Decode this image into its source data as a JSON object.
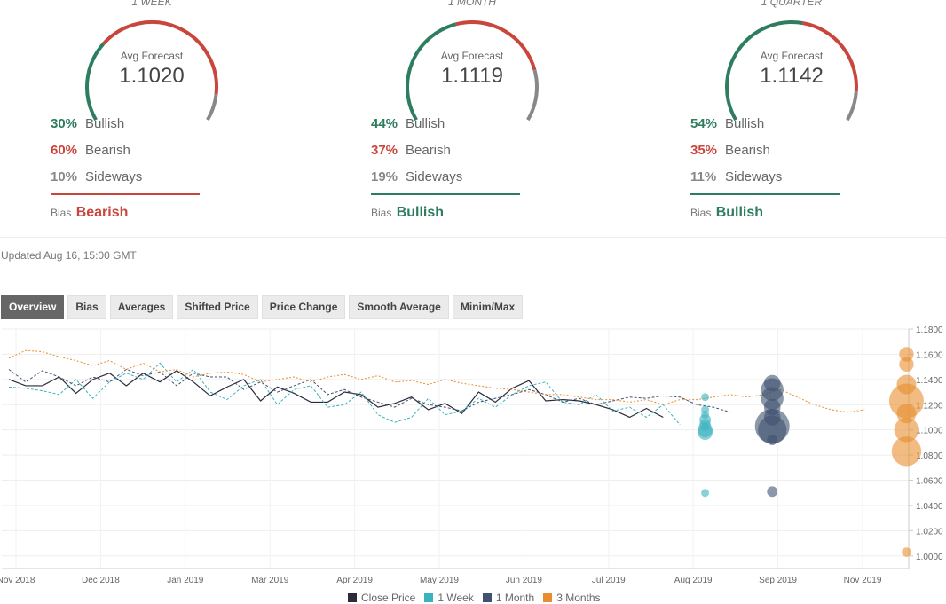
{
  "forecasts": [
    {
      "period": "1 WEEK",
      "avg_label": "Avg Forecast",
      "avg_value": "1.1020",
      "stats": [
        {
          "pct": "30%",
          "label": "Bullish",
          "color": "#2f7d5f"
        },
        {
          "pct": "60%",
          "label": "Bearish",
          "color": "#c9463d"
        },
        {
          "pct": "10%",
          "label": "Sideways",
          "color": "#888888"
        }
      ],
      "bias_label": "Bias",
      "bias": "Bearish",
      "bias_color": "#c9463d"
    },
    {
      "period": "1 MONTH",
      "avg_label": "Avg Forecast",
      "avg_value": "1.1119",
      "stats": [
        {
          "pct": "44%",
          "label": "Bullish",
          "color": "#2f7d5f"
        },
        {
          "pct": "37%",
          "label": "Bearish",
          "color": "#c9463d"
        },
        {
          "pct": "19%",
          "label": "Sideways",
          "color": "#888888"
        }
      ],
      "bias_label": "Bias",
      "bias": "Bullish",
      "bias_color": "#2f7d5f"
    },
    {
      "period": "1 QUARTER",
      "avg_label": "Avg Forecast",
      "avg_value": "1.1142",
      "stats": [
        {
          "pct": "54%",
          "label": "Bullish",
          "color": "#2f7d5f"
        },
        {
          "pct": "35%",
          "label": "Bearish",
          "color": "#c9463d"
        },
        {
          "pct": "11%",
          "label": "Sideways",
          "color": "#888888"
        }
      ],
      "bias_label": "Bias",
      "bias": "Bullish",
      "bias_color": "#2f7d5f"
    }
  ],
  "updated": "Updated Aug 16, 15:00 GMT",
  "tabs": [
    {
      "label": "Overview",
      "active": true
    },
    {
      "label": "Bias",
      "active": false
    },
    {
      "label": "Averages",
      "active": false
    },
    {
      "label": "Shifted Price",
      "active": false
    },
    {
      "label": "Price Change",
      "active": false
    },
    {
      "label": "Smooth Average",
      "active": false
    },
    {
      "label": "Minim/Max",
      "active": false
    }
  ],
  "chart_data": {
    "type": "line",
    "ylim": [
      0.99,
      1.18
    ],
    "y_ticks": [
      "1.1800",
      "1.1600",
      "1.1400",
      "1.1200",
      "1.1000",
      "1.0800",
      "1.0600",
      "1.0400",
      "1.0200",
      "1.0000"
    ],
    "x_ticks": [
      "Nov 2018",
      "Dec 2018",
      "Jan 2019",
      "Mar 2019",
      "Apr 2019",
      "May 2019",
      "Jun 2019",
      "Jul 2019",
      "Aug 2019",
      "Sep 2019",
      "Nov 2019"
    ],
    "x_range": [
      0,
      53
    ],
    "grid": true,
    "legend_position": "bottom",
    "series": [
      {
        "name": "Close Price",
        "color": "#2b2b3a",
        "style": "solid",
        "x": [
          0,
          1,
          2,
          3,
          4,
          5,
          6,
          7,
          8,
          9,
          10,
          11,
          12,
          13,
          14,
          15,
          16,
          17,
          18,
          19,
          20,
          21,
          22,
          23,
          24,
          25,
          26,
          27,
          28,
          29,
          30,
          31,
          32,
          33,
          34,
          35,
          36,
          37,
          38,
          39
        ],
        "y": [
          1.14,
          1.135,
          1.135,
          1.142,
          1.129,
          1.14,
          1.145,
          1.135,
          1.145,
          1.138,
          1.147,
          1.138,
          1.127,
          1.134,
          1.14,
          1.123,
          1.134,
          1.129,
          1.122,
          1.122,
          1.13,
          1.128,
          1.118,
          1.121,
          1.126,
          1.116,
          1.121,
          1.113,
          1.13,
          1.122,
          1.133,
          1.139,
          1.123,
          1.124,
          1.123,
          1.12,
          1.116,
          1.11,
          1.117,
          1.11
        ]
      },
      {
        "name": "1 Week",
        "color": "#3ab2bf",
        "style": "dashed",
        "x": [
          0,
          1,
          2,
          3,
          4,
          5,
          6,
          7,
          8,
          9,
          10,
          11,
          12,
          13,
          14,
          15,
          16,
          17,
          18,
          19,
          20,
          21,
          22,
          23,
          24,
          25,
          26,
          27,
          28,
          29,
          30,
          31,
          32,
          33,
          34,
          35,
          36,
          37,
          38,
          39,
          40
        ],
        "y": [
          1.134,
          1.133,
          1.131,
          1.128,
          1.14,
          1.125,
          1.138,
          1.145,
          1.14,
          1.153,
          1.138,
          1.148,
          1.13,
          1.124,
          1.135,
          1.14,
          1.12,
          1.132,
          1.135,
          1.118,
          1.12,
          1.13,
          1.112,
          1.106,
          1.11,
          1.125,
          1.112,
          1.115,
          1.125,
          1.118,
          1.128,
          1.135,
          1.138,
          1.122,
          1.12,
          1.128,
          1.115,
          1.118,
          1.11,
          1.12,
          1.104
        ]
      },
      {
        "name": "1 Month",
        "color": "#3f5270",
        "style": "dashed",
        "x": [
          0,
          1,
          2,
          3,
          4,
          5,
          6,
          7,
          8,
          9,
          10,
          11,
          12,
          13,
          14,
          15,
          16,
          17,
          18,
          19,
          20,
          21,
          22,
          23,
          24,
          25,
          26,
          27,
          28,
          29,
          30,
          31,
          32,
          33,
          34,
          35,
          36,
          37,
          38,
          39,
          40,
          41,
          42,
          43
        ],
        "y": [
          1.148,
          1.138,
          1.147,
          1.142,
          1.135,
          1.142,
          1.138,
          1.148,
          1.143,
          1.146,
          1.135,
          1.145,
          1.142,
          1.142,
          1.132,
          1.138,
          1.13,
          1.135,
          1.14,
          1.128,
          1.132,
          1.126,
          1.122,
          1.118,
          1.125,
          1.12,
          1.118,
          1.115,
          1.122,
          1.125,
          1.128,
          1.132,
          1.128,
          1.122,
          1.125,
          1.12,
          1.123,
          1.126,
          1.125,
          1.127,
          1.126,
          1.12,
          1.118,
          1.114
        ]
      },
      {
        "name": "3 Months",
        "color": "#e88d2f",
        "style": "dotted",
        "x": [
          0,
          1,
          2,
          3,
          4,
          5,
          6,
          7,
          8,
          9,
          10,
          11,
          12,
          13,
          14,
          15,
          16,
          17,
          18,
          19,
          20,
          21,
          22,
          23,
          24,
          25,
          26,
          27,
          28,
          29,
          30,
          31,
          32,
          33,
          34,
          35,
          36,
          37,
          38,
          39,
          40,
          41,
          42,
          43,
          44,
          45,
          46,
          47,
          48,
          49,
          50,
          51
        ],
        "y": [
          1.157,
          1.163,
          1.162,
          1.158,
          1.155,
          1.151,
          1.155,
          1.148,
          1.153,
          1.146,
          1.148,
          1.142,
          1.145,
          1.146,
          1.144,
          1.138,
          1.14,
          1.142,
          1.138,
          1.142,
          1.144,
          1.14,
          1.143,
          1.138,
          1.139,
          1.136,
          1.14,
          1.137,
          1.135,
          1.133,
          1.132,
          1.13,
          1.128,
          1.128,
          1.126,
          1.124,
          1.124,
          1.122,
          1.124,
          1.12,
          1.124,
          1.124,
          1.126,
          1.128,
          1.126,
          1.128,
          1.132,
          1.126,
          1.12,
          1.116,
          1.114,
          1.116
        ]
      }
    ],
    "forecast_points": [
      {
        "series": "1 Week",
        "x": 41.5,
        "values": [
          1.126,
          1.116,
          1.112,
          1.108,
          1.104,
          1.1,
          1.098,
          1.05
        ],
        "weights": [
          1,
          1,
          1,
          2,
          2,
          3,
          3,
          1
        ]
      },
      {
        "series": "1 Month",
        "x": 45.5,
        "values": [
          1.137,
          1.132,
          1.125,
          1.118,
          1.11,
          1.103,
          1.1,
          1.092,
          1.051
        ],
        "weights": [
          2,
          3,
          3,
          2,
          2,
          5,
          4,
          1,
          1
        ]
      },
      {
        "series": "3 Months",
        "x": 53.5,
        "values": [
          1.16,
          1.152,
          1.136,
          1.123,
          1.113,
          1.1,
          1.083,
          1.003
        ],
        "weights": [
          2,
          2,
          3,
          6,
          3,
          4,
          5,
          1
        ]
      }
    ]
  },
  "legend": [
    {
      "name": "Close Price",
      "color": "#2b2b3a"
    },
    {
      "name": "1 Week",
      "color": "#3ab2bf"
    },
    {
      "name": "1 Month",
      "color": "#3f5270"
    },
    {
      "name": "3 Months",
      "color": "#e88d2f"
    }
  ]
}
